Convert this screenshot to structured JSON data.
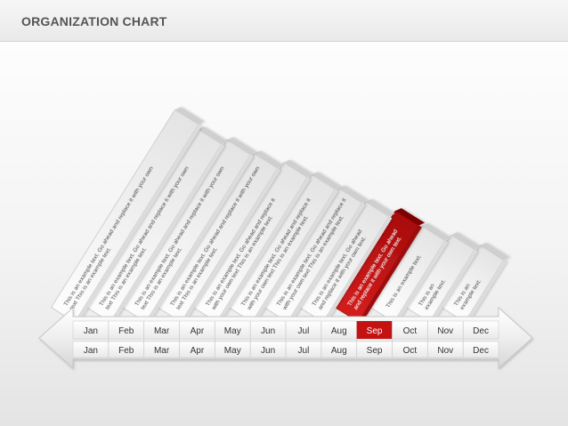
{
  "title": "ORGANIZATION CHART",
  "months": [
    "Jan",
    "Feb",
    "Mar",
    "Apr",
    "May",
    "Jun",
    "Jul",
    "Aug",
    "Sep",
    "Oct",
    "Nov",
    "Dec"
  ],
  "highlighted_month": "Sep",
  "colors": {
    "highlight": "#c41212",
    "highlight_dark": "#8e0606",
    "bar_face": "#f2f2f2",
    "text": "#333333"
  },
  "bars": [
    {
      "month": "Jan",
      "lines": [
        "This is an example text. Go ahead and replace it with your own",
        "text This is an example text."
      ]
    },
    {
      "month": "Feb",
      "lines": [
        "This is an example text. Go ahead and replace it with your own",
        "text This is an example text."
      ]
    },
    {
      "month": "Mar",
      "lines": [
        "This is an example text. Go ahead and replace it with your own",
        "text This is an example text."
      ]
    },
    {
      "month": "Apr",
      "lines": [
        "This is an example text. Go ahead and replace it with your own",
        "text This is an example text."
      ]
    },
    {
      "month": "May",
      "lines": [
        "This is an example text. Go ahead and replace it",
        "with your own text This is an example text."
      ]
    },
    {
      "month": "Jun",
      "lines": [
        "This is an example text. Go ahead and replace it",
        "with your own text This is an example text."
      ]
    },
    {
      "month": "Jul",
      "lines": [
        "This is an example text. Go ahead and replace it",
        "with your own text This is an example text."
      ]
    },
    {
      "month": "Aug",
      "lines": [
        "This is an example text. Go ahead",
        "and replace it with your own text."
      ]
    },
    {
      "month": "Sep",
      "lines": [
        "This is an example text. Go ahead",
        "and replace it with your own text."
      ]
    },
    {
      "month": "Oct",
      "lines": [
        "This is an example text."
      ]
    },
    {
      "month": "Nov",
      "lines": [
        "This is an",
        "example text."
      ]
    },
    {
      "month": "Dec",
      "lines": [
        "This is an",
        "example text."
      ]
    }
  ]
}
